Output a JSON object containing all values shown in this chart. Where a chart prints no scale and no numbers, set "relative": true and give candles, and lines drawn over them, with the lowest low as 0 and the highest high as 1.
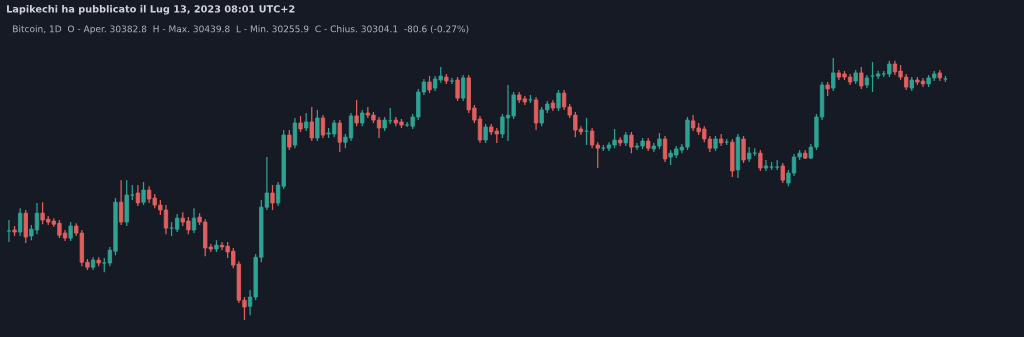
{
  "chart_data": {
    "type": "candlestick",
    "relative": true,
    "title": "Lapikechi ha pubblicato il Lug 13, 2023 08:01 UTC+2",
    "subtitle": "Bitcoin, 1D  O - Aper. 30382.8  H - Max. 30439.8  L - Min. 30255.9  C - Chius. 30304.1  -80.6 (-0.27%)",
    "categories": [
      null,
      null,
      null,
      null,
      null,
      null,
      null,
      null,
      null,
      null,
      null,
      null,
      null,
      null,
      null,
      null,
      null,
      null,
      null,
      null,
      null,
      null,
      null,
      null,
      null,
      null,
      null,
      null,
      null,
      null,
      null,
      null,
      null,
      null,
      null,
      null,
      null,
      null,
      null,
      null,
      null,
      null,
      null,
      null,
      null,
      null,
      null,
      null,
      null,
      null,
      null,
      null,
      null,
      null,
      null,
      null,
      null,
      null,
      null,
      null,
      null,
      null,
      null,
      null,
      null,
      null,
      null,
      null,
      null,
      null,
      null,
      null,
      null,
      null,
      null,
      null,
      null,
      null,
      null,
      null,
      null,
      null,
      null,
      null,
      null,
      null,
      null,
      null,
      null,
      null,
      null,
      null,
      null,
      null,
      null,
      null,
      null,
      null,
      null,
      null,
      null,
      null,
      null,
      null,
      null,
      null,
      null,
      null,
      null,
      null,
      null,
      null,
      null,
      null,
      null,
      null,
      null,
      null,
      null,
      null,
      null,
      null,
      null,
      null,
      null,
      null,
      null,
      null,
      null,
      null,
      null,
      null,
      null,
      null,
      null,
      null,
      null,
      null,
      null,
      null,
      null,
      null,
      null,
      null,
      null,
      null,
      null,
      null,
      null,
      null,
      null,
      null,
      null,
      null,
      null,
      null,
      null,
      null,
      null,
      null,
      null,
      null,
      null,
      null,
      null,
      null,
      null,
      null
    ],
    "ohlc": [
      [
        0.34,
        0.382,
        0.298,
        0.34
      ],
      [
        0.344,
        0.359,
        0.321,
        0.336
      ],
      [
        0.336,
        0.427,
        0.321,
        0.408
      ],
      [
        0.408,
        0.42,
        0.294,
        0.317
      ],
      [
        0.321,
        0.363,
        0.305,
        0.347
      ],
      [
        0.344,
        0.447,
        0.328,
        0.408
      ],
      [
        0.408,
        0.45,
        0.366,
        0.382
      ],
      [
        0.385,
        0.397,
        0.363,
        0.374
      ],
      [
        0.378,
        0.389,
        0.355,
        0.366
      ],
      [
        0.37,
        0.382,
        0.313,
        0.324
      ],
      [
        0.332,
        0.344,
        0.302,
        0.313
      ],
      [
        0.313,
        0.374,
        0.302,
        0.359
      ],
      [
        0.359,
        0.37,
        0.321,
        0.332
      ],
      [
        0.332,
        0.344,
        0.206,
        0.221
      ],
      [
        0.221,
        0.233,
        0.191,
        0.202
      ],
      [
        0.202,
        0.24,
        0.191,
        0.229
      ],
      [
        0.229,
        0.24,
        0.206,
        0.218
      ],
      [
        0.218,
        0.237,
        0.183,
        0.218
      ],
      [
        0.218,
        0.279,
        0.206,
        0.267
      ],
      [
        0.263,
        0.466,
        0.248,
        0.45
      ],
      [
        0.45,
        0.534,
        0.363,
        0.374
      ],
      [
        0.374,
        0.534,
        0.359,
        0.477
      ],
      [
        0.477,
        0.515,
        0.458,
        0.477
      ],
      [
        0.485,
        0.515,
        0.435,
        0.447
      ],
      [
        0.45,
        0.527,
        0.439,
        0.496
      ],
      [
        0.496,
        0.511,
        0.447,
        0.462
      ],
      [
        0.466,
        0.481,
        0.427,
        0.439
      ],
      [
        0.439,
        0.458,
        0.401,
        0.42
      ],
      [
        0.42,
        0.439,
        0.328,
        0.351
      ],
      [
        0.351,
        0.374,
        0.321,
        0.351
      ],
      [
        0.347,
        0.405,
        0.336,
        0.389
      ],
      [
        0.389,
        0.412,
        0.359,
        0.374
      ],
      [
        0.378,
        0.393,
        0.328,
        0.344
      ],
      [
        0.344,
        0.427,
        0.332,
        0.389
      ],
      [
        0.393,
        0.408,
        0.363,
        0.374
      ],
      [
        0.374,
        0.385,
        0.244,
        0.275
      ],
      [
        0.279,
        0.29,
        0.26,
        0.271
      ],
      [
        0.271,
        0.305,
        0.26,
        0.286
      ],
      [
        0.286,
        0.298,
        0.267,
        0.279
      ],
      [
        0.282,
        0.298,
        0.237,
        0.26
      ],
      [
        0.263,
        0.275,
        0.198,
        0.21
      ],
      [
        0.214,
        0.225,
        0.065,
        0.076
      ],
      [
        0.076,
        0.088,
        0.0,
        0.05
      ],
      [
        0.053,
        0.115,
        0.019,
        0.088
      ],
      [
        0.088,
        0.252,
        0.076,
        0.24
      ],
      [
        0.24,
        0.458,
        0.221,
        0.431
      ],
      [
        0.431,
        0.622,
        0.42,
        0.485
      ],
      [
        0.485,
        0.515,
        0.42,
        0.447
      ],
      [
        0.447,
        0.527,
        0.435,
        0.515
      ],
      [
        0.511,
        0.725,
        0.5,
        0.706
      ],
      [
        0.706,
        0.725,
        0.649,
        0.66
      ],
      [
        0.668,
        0.771,
        0.656,
        0.752
      ],
      [
        0.752,
        0.779,
        0.718,
        0.729
      ],
      [
        0.733,
        0.79,
        0.721,
        0.756
      ],
      [
        0.756,
        0.813,
        0.683,
        0.695
      ],
      [
        0.695,
        0.802,
        0.683,
        0.771
      ],
      [
        0.771,
        0.782,
        0.695,
        0.706
      ],
      [
        0.71,
        0.733,
        0.695,
        0.714
      ],
      [
        0.71,
        0.763,
        0.698,
        0.752
      ],
      [
        0.752,
        0.763,
        0.641,
        0.679
      ],
      [
        0.679,
        0.71,
        0.656,
        0.698
      ],
      [
        0.695,
        0.79,
        0.683,
        0.779
      ],
      [
        0.779,
        0.84,
        0.74,
        0.752
      ],
      [
        0.752,
        0.802,
        0.74,
        0.79
      ],
      [
        0.79,
        0.813,
        0.771,
        0.782
      ],
      [
        0.782,
        0.794,
        0.752,
        0.763
      ],
      [
        0.763,
        0.775,
        0.695,
        0.733
      ],
      [
        0.733,
        0.775,
        0.721,
        0.763
      ],
      [
        0.76,
        0.809,
        0.748,
        0.76
      ],
      [
        0.763,
        0.775,
        0.74,
        0.752
      ],
      [
        0.756,
        0.767,
        0.733,
        0.744
      ],
      [
        0.744,
        0.756,
        0.737,
        0.744
      ],
      [
        0.74,
        0.786,
        0.729,
        0.775
      ],
      [
        0.775,
        0.882,
        0.763,
        0.87
      ],
      [
        0.87,
        0.92,
        0.859,
        0.908
      ],
      [
        0.908,
        0.931,
        0.866,
        0.878
      ],
      [
        0.885,
        0.931,
        0.874,
        0.92
      ],
      [
        0.916,
        0.966,
        0.905,
        0.931
      ],
      [
        0.927,
        0.939,
        0.901,
        0.912
      ],
      [
        0.912,
        0.924,
        0.901,
        0.912
      ],
      [
        0.916,
        0.927,
        0.836,
        0.847
      ],
      [
        0.847,
        0.935,
        0.836,
        0.924
      ],
      [
        0.924,
        0.935,
        0.79,
        0.802
      ],
      [
        0.809,
        0.821,
        0.752,
        0.763
      ],
      [
        0.767,
        0.779,
        0.676,
        0.687
      ],
      [
        0.687,
        0.748,
        0.676,
        0.737
      ],
      [
        0.737,
        0.748,
        0.706,
        0.718
      ],
      [
        0.721,
        0.733,
        0.676,
        0.71
      ],
      [
        0.71,
        0.786,
        0.695,
        0.775
      ],
      [
        0.771,
        0.897,
        0.683,
        0.782
      ],
      [
        0.779,
        0.87,
        0.767,
        0.859
      ],
      [
        0.859,
        0.87,
        0.828,
        0.84
      ],
      [
        0.844,
        0.855,
        0.821,
        0.832
      ],
      [
        0.84,
        0.859,
        0.828,
        0.84
      ],
      [
        0.84,
        0.851,
        0.725,
        0.752
      ],
      [
        0.752,
        0.813,
        0.74,
        0.802
      ],
      [
        0.802,
        0.836,
        0.79,
        0.824
      ],
      [
        0.828,
        0.84,
        0.798,
        0.809
      ],
      [
        0.809,
        0.878,
        0.798,
        0.866
      ],
      [
        0.866,
        0.878,
        0.802,
        0.813
      ],
      [
        0.813,
        0.824,
        0.771,
        0.782
      ],
      [
        0.782,
        0.794,
        0.698,
        0.725
      ],
      [
        0.729,
        0.74,
        0.706,
        0.718
      ],
      [
        0.721,
        0.771,
        0.668,
        0.721
      ],
      [
        0.721,
        0.733,
        0.656,
        0.668
      ],
      [
        0.668,
        0.679,
        0.58,
        0.656
      ],
      [
        0.656,
        0.668,
        0.645,
        0.656
      ],
      [
        0.656,
        0.679,
        0.645,
        0.668
      ],
      [
        0.668,
        0.729,
        0.656,
        0.687
      ],
      [
        0.687,
        0.698,
        0.664,
        0.676
      ],
      [
        0.676,
        0.718,
        0.664,
        0.706
      ],
      [
        0.706,
        0.718,
        0.637,
        0.66
      ],
      [
        0.66,
        0.676,
        0.649,
        0.664
      ],
      [
        0.664,
        0.695,
        0.653,
        0.683
      ],
      [
        0.683,
        0.695,
        0.645,
        0.656
      ],
      [
        0.653,
        0.676,
        0.641,
        0.664
      ],
      [
        0.664,
        0.714,
        0.653,
        0.691
      ],
      [
        0.691,
        0.702,
        0.603,
        0.615
      ],
      [
        0.622,
        0.649,
        0.592,
        0.637
      ],
      [
        0.63,
        0.664,
        0.618,
        0.653
      ],
      [
        0.649,
        0.672,
        0.637,
        0.66
      ],
      [
        0.66,
        0.775,
        0.649,
        0.763
      ],
      [
        0.76,
        0.782,
        0.721,
        0.733
      ],
      [
        0.733,
        0.752,
        0.706,
        0.718
      ],
      [
        0.729,
        0.74,
        0.679,
        0.691
      ],
      [
        0.691,
        0.702,
        0.641,
        0.656
      ],
      [
        0.656,
        0.702,
        0.645,
        0.691
      ],
      [
        0.691,
        0.71,
        0.664,
        0.676
      ],
      [
        0.679,
        0.691,
        0.668,
        0.679
      ],
      [
        0.679,
        0.691,
        0.546,
        0.569
      ],
      [
        0.573,
        0.71,
        0.542,
        0.698
      ],
      [
        0.691,
        0.702,
        0.599,
        0.611
      ],
      [
        0.615,
        0.66,
        0.603,
        0.637
      ],
      [
        0.637,
        0.656,
        0.626,
        0.637
      ],
      [
        0.637,
        0.649,
        0.569,
        0.58
      ],
      [
        0.58,
        0.611,
        0.569,
        0.588
      ],
      [
        0.584,
        0.603,
        0.573,
        0.584
      ],
      [
        0.584,
        0.611,
        0.573,
        0.584
      ],
      [
        0.588,
        0.599,
        0.523,
        0.534
      ],
      [
        0.523,
        0.573,
        0.511,
        0.561
      ],
      [
        0.561,
        0.634,
        0.55,
        0.622
      ],
      [
        0.622,
        0.649,
        0.611,
        0.637
      ],
      [
        0.637,
        0.649,
        0.615,
        0.618
      ],
      [
        0.618,
        0.672,
        0.615,
        0.66
      ],
      [
        0.66,
        0.786,
        0.649,
        0.775
      ],
      [
        0.775,
        0.908,
        0.763,
        0.897
      ],
      [
        0.897,
        0.908,
        0.855,
        0.882
      ],
      [
        0.885,
        1.0,
        0.874,
        0.943
      ],
      [
        0.943,
        0.954,
        0.916,
        0.927
      ],
      [
        0.939,
        0.95,
        0.916,
        0.927
      ],
      [
        0.927,
        0.939,
        0.897,
        0.908
      ],
      [
        0.912,
        0.954,
        0.901,
        0.943
      ],
      [
        0.943,
        0.966,
        0.882,
        0.893
      ],
      [
        0.897,
        0.935,
        0.885,
        0.924
      ],
      [
        0.931,
        0.985,
        0.87,
        0.931
      ],
      [
        0.931,
        0.95,
        0.92,
        0.939
      ],
      [
        0.939,
        0.95,
        0.927,
        0.939
      ],
      [
        0.939,
        0.989,
        0.927,
        0.977
      ],
      [
        0.977,
        0.989,
        0.935,
        0.947
      ],
      [
        0.95,
        0.973,
        0.916,
        0.927
      ],
      [
        0.927,
        0.939,
        0.878,
        0.889
      ],
      [
        0.885,
        0.927,
        0.874,
        0.916
      ],
      [
        0.916,
        0.927,
        0.897,
        0.908
      ],
      [
        0.912,
        0.924,
        0.889,
        0.901
      ],
      [
        0.901,
        0.935,
        0.889,
        0.924
      ],
      [
        0.924,
        0.95,
        0.912,
        0.939
      ],
      [
        0.943,
        0.954,
        0.912,
        0.924
      ],
      [
        0.92,
        0.931,
        0.908,
        0.92
      ]
    ],
    "colors": [
      "#2fa393",
      "#e0605f",
      "#2fa393",
      "#e0605f",
      "#2fa393",
      "#2fa393",
      "#e0605f",
      "#e0605f",
      "#e0605f",
      "#e0605f",
      "#e0605f",
      "#2fa393",
      "#e0605f",
      "#e0605f",
      "#e0605f",
      "#2fa393",
      "#e0605f",
      "#2fa393",
      "#2fa393",
      "#2fa393",
      "#e0605f",
      "#2fa393",
      "#2fa393",
      "#e0605f",
      "#2fa393",
      "#e0605f",
      "#e0605f",
      "#e0605f",
      "#e0605f",
      "#2fa393",
      "#2fa393",
      "#e0605f",
      "#e0605f",
      "#2fa393",
      "#e0605f",
      "#e0605f",
      "#e0605f",
      "#2fa393",
      "#e0605f",
      "#e0605f",
      "#e0605f",
      "#e0605f",
      "#e0605f",
      "#2fa393",
      "#2fa393",
      "#2fa393",
      "#2fa393",
      "#e0605f",
      "#2fa393",
      "#2fa393",
      "#e0605f",
      "#2fa393",
      "#e0605f",
      "#2fa393",
      "#e0605f",
      "#2fa393",
      "#e0605f",
      "#2fa393",
      "#2fa393",
      "#e0605f",
      "#2fa393",
      "#2fa393",
      "#e0605f",
      "#2fa393",
      "#e0605f",
      "#e0605f",
      "#e0605f",
      "#2fa393",
      "#2fa393",
      "#e0605f",
      "#e0605f",
      "#2fa393",
      "#2fa393",
      "#2fa393",
      "#2fa393",
      "#e0605f",
      "#2fa393",
      "#2fa393",
      "#e0605f",
      "#2fa393",
      "#e0605f",
      "#2fa393",
      "#e0605f",
      "#e0605f",
      "#e0605f",
      "#2fa393",
      "#e0605f",
      "#e0605f",
      "#2fa393",
      "#2fa393",
      "#2fa393",
      "#e0605f",
      "#e0605f",
      "#2fa393",
      "#e0605f",
      "#2fa393",
      "#2fa393",
      "#e0605f",
      "#2fa393",
      "#e0605f",
      "#e0605f",
      "#e0605f",
      "#e0605f",
      "#2fa393",
      "#e0605f",
      "#e0605f",
      "#2fa393",
      "#2fa393",
      "#2fa393",
      "#e0605f",
      "#2fa393",
      "#e0605f",
      "#2fa393",
      "#2fa393",
      "#e0605f",
      "#2fa393",
      "#2fa393",
      "#e0605f",
      "#2fa393",
      "#2fa393",
      "#2fa393",
      "#2fa393",
      "#e0605f",
      "#e0605f",
      "#e0605f",
      "#e0605f",
      "#2fa393",
      "#e0605f",
      "#2fa393",
      "#e0605f",
      "#2fa393",
      "#e0605f",
      "#2fa393",
      "#2fa393",
      "#e0605f",
      "#2fa393",
      "#2fa393",
      "#2fa393",
      "#e0605f",
      "#2fa393",
      "#2fa393",
      "#2fa393",
      "#e0605f",
      "#2fa393",
      "#2fa393",
      "#2fa393",
      "#e0605f",
      "#2fa393",
      "#e0605f",
      "#e0605f",
      "#e0605f",
      "#2fa393",
      "#e0605f",
      "#2fa393",
      "#2fa393",
      "#2fa393",
      "#2fa393",
      "#2fa393",
      "#e0605f",
      "#e0605f",
      "#e0605f",
      "#2fa393",
      "#e0605f",
      "#e0605f",
      "#2fa393",
      "#2fa393",
      "#e0605f",
      "#2fa393"
    ]
  }
}
